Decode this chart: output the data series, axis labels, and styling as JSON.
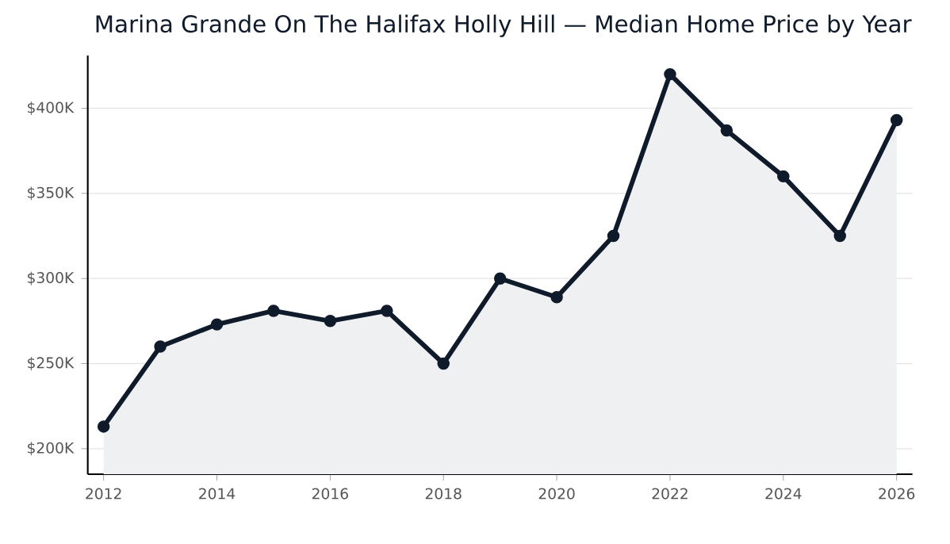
{
  "chart_data": {
    "type": "area",
    "title": "Marina Grande On The Halifax Holly Hill — Median Home Price by Year",
    "x": [
      2012,
      2013,
      2014,
      2015,
      2016,
      2017,
      2018,
      2019,
      2020,
      2021,
      2022,
      2023,
      2024,
      2025,
      2026
    ],
    "values": [
      213000,
      260000,
      273000,
      281000,
      275000,
      281000,
      250000,
      300000,
      289000,
      325000,
      420000,
      387000,
      360000,
      325000,
      393000
    ],
    "color": "#0f1a2a",
    "xlim": [
      2011.72,
      2026.28
    ],
    "xticks": [
      2012,
      2014,
      2016,
      2018,
      2020,
      2022,
      2024,
      2026
    ],
    "ylim": [
      185000,
      431000
    ],
    "yticks": [
      {
        "value": 200000,
        "label": "$200K"
      },
      {
        "value": 250000,
        "label": "$250K"
      },
      {
        "value": 300000,
        "label": "$300K"
      },
      {
        "value": 350000,
        "label": "$350K"
      },
      {
        "value": 400000,
        "label": "$400K"
      }
    ],
    "grid": "y",
    "marker": "circle",
    "line_style": "solid"
  }
}
